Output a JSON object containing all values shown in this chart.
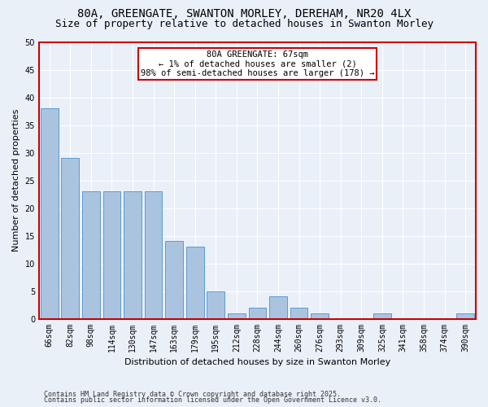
{
  "title1": "80A, GREENGATE, SWANTON MORLEY, DEREHAM, NR20 4LX",
  "title2": "Size of property relative to detached houses in Swanton Morley",
  "xlabel": "Distribution of detached houses by size in Swanton Morley",
  "ylabel": "Number of detached properties",
  "footer1": "Contains HM Land Registry data © Crown copyright and database right 2025.",
  "footer2": "Contains public sector information licensed under the Open Government Licence v3.0.",
  "categories": [
    "66sqm",
    "82sqm",
    "98sqm",
    "114sqm",
    "130sqm",
    "147sqm",
    "163sqm",
    "179sqm",
    "195sqm",
    "212sqm",
    "228sqm",
    "244sqm",
    "260sqm",
    "276sqm",
    "293sqm",
    "309sqm",
    "325sqm",
    "341sqm",
    "358sqm",
    "374sqm",
    "390sqm"
  ],
  "values": [
    38,
    29,
    23,
    23,
    23,
    23,
    14,
    13,
    5,
    1,
    2,
    4,
    2,
    1,
    0,
    0,
    1,
    0,
    0,
    0,
    1
  ],
  "bar_color": "#aac4e0",
  "bar_edge_color": "#5b9bd5",
  "annotation_line1": "80A GREENGATE: 67sqm",
  "annotation_line2": "← 1% of detached houses are smaller (2)",
  "annotation_line3": "98% of semi-detached houses are larger (178) →",
  "annotation_box_color": "#ffffff",
  "annotation_box_edge_color": "#cc0000",
  "ylim": [
    0,
    50
  ],
  "yticks": [
    0,
    5,
    10,
    15,
    20,
    25,
    30,
    35,
    40,
    45,
    50
  ],
  "bg_color": "#eaf0f8",
  "grid_color": "#ffffff",
  "title_fontsize": 10,
  "subtitle_fontsize": 9,
  "tick_fontsize": 7,
  "ylabel_fontsize": 8,
  "xlabel_fontsize": 8,
  "footer_fontsize": 6
}
